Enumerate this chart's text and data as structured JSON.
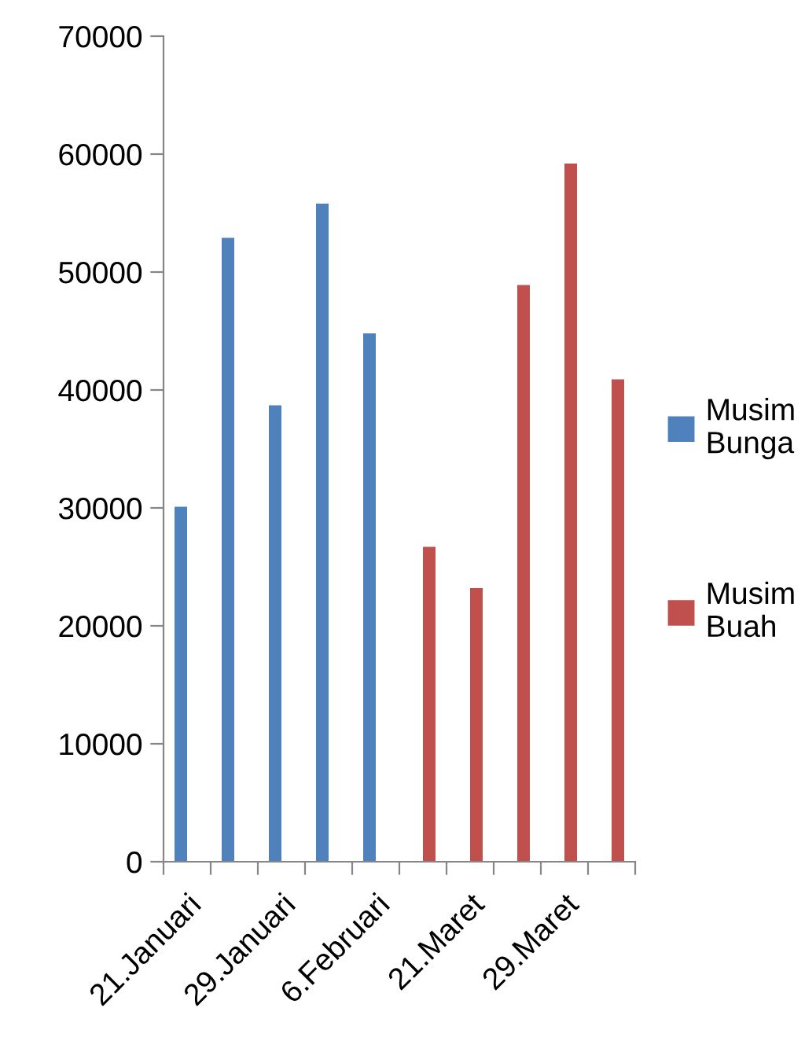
{
  "chart_data": {
    "type": "bar",
    "categories": [
      "21.Januari",
      null,
      "29.Januari",
      null,
      "6.Februari",
      null,
      "21.Maret",
      null,
      "29.Maret",
      null
    ],
    "series": [
      {
        "name": "Musim\nBunga",
        "color": "#4f81bd",
        "values": [
          30100,
          52900,
          38700,
          55800,
          44800,
          null,
          null,
          null,
          null,
          null
        ]
      },
      {
        "name": "Musim\nBuah",
        "color": "#c0504d",
        "values": [
          null,
          null,
          null,
          null,
          null,
          26700,
          23200,
          48900,
          59200,
          40900
        ]
      }
    ],
    "ylim": [
      0,
      70000
    ],
    "yticks": [
      0,
      10000,
      20000,
      30000,
      40000,
      50000,
      60000,
      70000
    ],
    "grid": false,
    "legend": "right"
  }
}
